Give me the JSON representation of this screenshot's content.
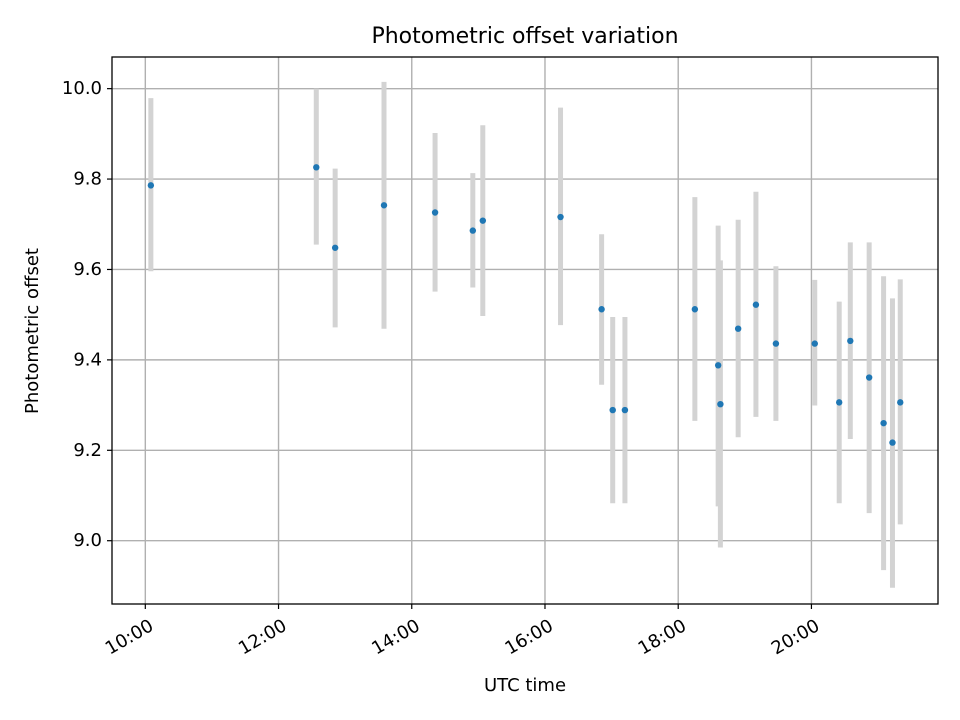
{
  "chart_data": {
    "type": "scatter",
    "title": "Photometric offset variation",
    "xlabel": "UTC time",
    "ylabel": "Photometric offset",
    "xlim": [
      "09:30",
      "21:54"
    ],
    "ylim": [
      8.86,
      10.07
    ],
    "x_ticks": [
      "10:00",
      "12:00",
      "14:00",
      "16:00",
      "18:00",
      "20:00"
    ],
    "y_ticks": [
      "9.0",
      "9.2",
      "9.4",
      "9.6",
      "9.8",
      "10.0"
    ],
    "grid": true,
    "legend": "none",
    "colors": {
      "marker": "#1f77b4",
      "errorbar": "#d3d3d3",
      "grid": "#b0b0b0"
    },
    "points": [
      {
        "x": "10:05",
        "y": 9.786,
        "ylow": 9.596,
        "yhigh": 9.979
      },
      {
        "x": "12:34",
        "y": 9.826,
        "ylow": 9.655,
        "yhigh": 10.0
      },
      {
        "x": "12:51",
        "y": 9.648,
        "ylow": 9.472,
        "yhigh": 9.823
      },
      {
        "x": "13:35",
        "y": 9.742,
        "ylow": 9.469,
        "yhigh": 10.015
      },
      {
        "x": "14:21",
        "y": 9.726,
        "ylow": 9.551,
        "yhigh": 9.902
      },
      {
        "x": "14:55",
        "y": 9.686,
        "ylow": 9.56,
        "yhigh": 9.813
      },
      {
        "x": "15:04",
        "y": 9.708,
        "ylow": 9.497,
        "yhigh": 9.919
      },
      {
        "x": "16:14",
        "y": 9.716,
        "ylow": 9.477,
        "yhigh": 9.958
      },
      {
        "x": "16:51",
        "y": 9.512,
        "ylow": 9.345,
        "yhigh": 9.678
      },
      {
        "x": "17:01",
        "y": 9.289,
        "ylow": 9.083,
        "yhigh": 9.495
      },
      {
        "x": "17:12",
        "y": 9.289,
        "ylow": 9.083,
        "yhigh": 9.495
      },
      {
        "x": "18:15",
        "y": 9.512,
        "ylow": 9.265,
        "yhigh": 9.76
      },
      {
        "x": "18:36",
        "y": 9.388,
        "ylow": 9.076,
        "yhigh": 9.697
      },
      {
        "x": "18:38",
        "y": 9.302,
        "ylow": 8.985,
        "yhigh": 9.62
      },
      {
        "x": "18:54",
        "y": 9.469,
        "ylow": 9.229,
        "yhigh": 9.71
      },
      {
        "x": "19:10",
        "y": 9.522,
        "ylow": 9.274,
        "yhigh": 9.772
      },
      {
        "x": "19:28",
        "y": 9.436,
        "ylow": 9.265,
        "yhigh": 9.607
      },
      {
        "x": "20:03",
        "y": 9.436,
        "ylow": 9.299,
        "yhigh": 9.577
      },
      {
        "x": "20:25",
        "y": 9.306,
        "ylow": 9.083,
        "yhigh": 9.529
      },
      {
        "x": "20:35",
        "y": 9.442,
        "ylow": 9.225,
        "yhigh": 9.66
      },
      {
        "x": "20:52",
        "y": 9.361,
        "ylow": 9.061,
        "yhigh": 9.66
      },
      {
        "x": "21:05",
        "y": 9.26,
        "ylow": 8.935,
        "yhigh": 9.585
      },
      {
        "x": "21:13",
        "y": 9.217,
        "ylow": 8.896,
        "yhigh": 9.536
      },
      {
        "x": "21:20",
        "y": 9.306,
        "ylow": 9.036,
        "yhigh": 9.578
      }
    ]
  }
}
